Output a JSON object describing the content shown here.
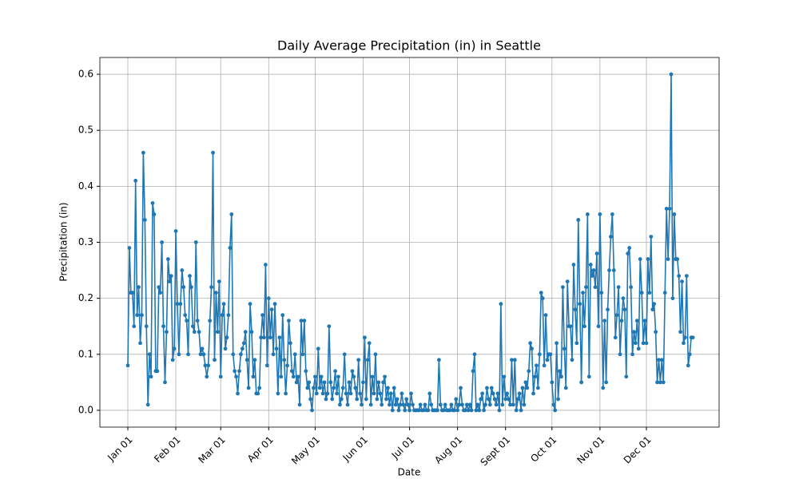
{
  "chart_data": {
    "type": "line",
    "title": "Daily Average Precipitation (in) in Seattle",
    "x_label": "Date",
    "y_label": "Precipitation (in)",
    "x": [
      "Jan 01",
      "Jan 02",
      "Jan 03",
      "Jan 04",
      "Jan 05",
      "Jan 06",
      "Jan 07",
      "Jan 08",
      "Jan 09",
      "Jan 10",
      "Jan 11",
      "Jan 12",
      "Jan 13",
      "Jan 14",
      "Jan 15",
      "Jan 16",
      "Jan 17",
      "Jan 18",
      "Jan 19",
      "Jan 20",
      "Jan 21",
      "Jan 22",
      "Jan 23",
      "Jan 24",
      "Jan 25",
      "Jan 26",
      "Jan 27",
      "Jan 28",
      "Jan 29",
      "Jan 30",
      "Jan 31",
      "Feb 01",
      "Feb 02",
      "Feb 03",
      "Feb 04",
      "Feb 05",
      "Feb 06",
      "Feb 07",
      "Feb 08",
      "Feb 09",
      "Feb 10",
      "Feb 11",
      "Feb 12",
      "Feb 13",
      "Feb 14",
      "Feb 15",
      "Feb 16",
      "Feb 17",
      "Feb 18",
      "Feb 19",
      "Feb 20",
      "Feb 21",
      "Feb 22",
      "Feb 23",
      "Feb 24",
      "Feb 25",
      "Feb 26",
      "Feb 27",
      "Feb 28",
      "Feb 29",
      "Mar 01",
      "Mar 02",
      "Mar 03",
      "Mar 04",
      "Mar 05",
      "Mar 06",
      "Mar 07",
      "Mar 08",
      "Mar 09",
      "Mar 10",
      "Mar 11",
      "Mar 12",
      "Mar 13",
      "Mar 14",
      "Mar 15",
      "Mar 16",
      "Mar 17",
      "Mar 18",
      "Mar 19",
      "Mar 20",
      "Mar 21",
      "Mar 22",
      "Mar 23",
      "Mar 24",
      "Mar 25",
      "Mar 26",
      "Mar 27",
      "Mar 28",
      "Mar 29",
      "Mar 30",
      "Mar 31",
      "Apr 01",
      "Apr 02",
      "Apr 03",
      "Apr 04",
      "Apr 05",
      "Apr 06",
      "Apr 07",
      "Apr 08",
      "Apr 09",
      "Apr 10",
      "Apr 11",
      "Apr 12",
      "Apr 13",
      "Apr 14",
      "Apr 15",
      "Apr 16",
      "Apr 17",
      "Apr 18",
      "Apr 19",
      "Apr 20",
      "Apr 21",
      "Apr 22",
      "Apr 23",
      "Apr 24",
      "Apr 25",
      "Apr 26",
      "Apr 27",
      "Apr 28",
      "Apr 29",
      "Apr 30",
      "May 01",
      "May 02",
      "May 03",
      "May 04",
      "May 05",
      "May 06",
      "May 07",
      "May 08",
      "May 09",
      "May 10",
      "May 11",
      "May 12",
      "May 13",
      "May 14",
      "May 15",
      "May 16",
      "May 17",
      "May 18",
      "May 19",
      "May 20",
      "May 21",
      "May 22",
      "May 23",
      "May 24",
      "May 25",
      "May 26",
      "May 27",
      "May 28",
      "May 29",
      "May 30",
      "May 31",
      "Jun 01",
      "Jun 02",
      "Jun 03",
      "Jun 04",
      "Jun 05",
      "Jun 06",
      "Jun 07",
      "Jun 08",
      "Jun 09",
      "Jun 10",
      "Jun 11",
      "Jun 12",
      "Jun 13",
      "Jun 14",
      "Jun 15",
      "Jun 16",
      "Jun 17",
      "Jun 18",
      "Jun 19",
      "Jun 20",
      "Jun 21",
      "Jun 22",
      "Jun 23",
      "Jun 24",
      "Jun 25",
      "Jun 26",
      "Jun 27",
      "Jun 28",
      "Jun 29",
      "Jun 30",
      "Jul 01",
      "Jul 02",
      "Jul 03",
      "Jul 04",
      "Jul 05",
      "Jul 06",
      "Jul 07",
      "Jul 08",
      "Jul 09",
      "Jul 10",
      "Jul 11",
      "Jul 12",
      "Jul 13",
      "Jul 14",
      "Jul 15",
      "Jul 16",
      "Jul 17",
      "Jul 18",
      "Jul 19",
      "Jul 20",
      "Jul 21",
      "Jul 22",
      "Jul 23",
      "Jul 24",
      "Jul 25",
      "Jul 26",
      "Jul 27",
      "Jul 28",
      "Jul 29",
      "Jul 30",
      "Jul 31",
      "Aug 01",
      "Aug 02",
      "Aug 03",
      "Aug 04",
      "Aug 05",
      "Aug 06",
      "Aug 07",
      "Aug 08",
      "Aug 09",
      "Aug 10",
      "Aug 11",
      "Aug 12",
      "Aug 13",
      "Aug 14",
      "Aug 15",
      "Aug 16",
      "Aug 17",
      "Aug 18",
      "Aug 19",
      "Aug 20",
      "Aug 21",
      "Aug 22",
      "Aug 23",
      "Aug 24",
      "Aug 25",
      "Aug 26",
      "Aug 27",
      "Aug 28",
      "Aug 29",
      "Aug 30",
      "Aug 31",
      "Sept 01",
      "Sept 02",
      "Sept 03",
      "Sept 04",
      "Sept 05",
      "Sept 06",
      "Sept 07",
      "Sept 08",
      "Sept 09",
      "Sept 10",
      "Sept 11",
      "Sept 12",
      "Sept 13",
      "Sept 14",
      "Sept 15",
      "Sept 16",
      "Sept 17",
      "Sept 18",
      "Sept 19",
      "Sept 20",
      "Sept 21",
      "Sept 22",
      "Sept 23",
      "Sept 24",
      "Sept 25",
      "Sept 26",
      "Sept 27",
      "Sept 28",
      "Sept 29",
      "Sept 30",
      "Oct 01",
      "Oct 02",
      "Oct 03",
      "Oct 04",
      "Oct 05",
      "Oct 06",
      "Oct 07",
      "Oct 08",
      "Oct 09",
      "Oct 10",
      "Oct 11",
      "Oct 12",
      "Oct 13",
      "Oct 14",
      "Oct 15",
      "Oct 16",
      "Oct 17",
      "Oct 18",
      "Oct 19",
      "Oct 20",
      "Oct 21",
      "Oct 22",
      "Oct 23",
      "Oct 24",
      "Oct 25",
      "Oct 26",
      "Oct 27",
      "Oct 28",
      "Oct 29",
      "Oct 30",
      "Oct 31",
      "Nov 01",
      "Nov 02",
      "Nov 03",
      "Nov 04",
      "Nov 05",
      "Nov 06",
      "Nov 07",
      "Nov 08",
      "Nov 09",
      "Nov 10",
      "Nov 11",
      "Nov 12",
      "Nov 13",
      "Nov 14",
      "Nov 15",
      "Nov 16",
      "Nov 17",
      "Nov 18",
      "Nov 19",
      "Nov 20",
      "Nov 21",
      "Nov 22",
      "Nov 23",
      "Nov 24",
      "Nov 25",
      "Nov 26",
      "Nov 27",
      "Nov 28",
      "Nov 29",
      "Nov 30",
      "Dec 01",
      "Dec 02",
      "Dec 03",
      "Dec 04",
      "Dec 05",
      "Dec 06",
      "Dec 07",
      "Dec 08",
      "Dec 09",
      "Dec 10",
      "Dec 11",
      "Dec 12",
      "Dec 13",
      "Dec 14",
      "Dec 15",
      "Dec 16",
      "Dec 17",
      "Dec 18",
      "Dec 19",
      "Dec 20",
      "Dec 21",
      "Dec 22",
      "Dec 23",
      "Dec 24",
      "Dec 25",
      "Dec 26",
      "Dec 27",
      "Dec 28",
      "Dec 29",
      "Dec 30",
      "Dec 31"
    ],
    "series": [
      {
        "color": "#1f77b4",
        "values": [
          0.08,
          0.29,
          0.21,
          0.21,
          0.15,
          0.41,
          0.17,
          0.22,
          0.12,
          0.17,
          0.46,
          0.34,
          0.15,
          0.01,
          0.1,
          0.06,
          0.37,
          0.35,
          0.07,
          0.07,
          0.22,
          0.21,
          0.3,
          0.15,
          0.05,
          0.14,
          0.27,
          0.23,
          0.24,
          0.09,
          0.11,
          0.32,
          0.19,
          0.1,
          0.19,
          0.25,
          0.22,
          0.17,
          0.16,
          0.1,
          0.24,
          0.22,
          0.15,
          0.14,
          0.3,
          0.16,
          0.14,
          0.1,
          0.11,
          0.1,
          0.08,
          0.06,
          0.08,
          0.16,
          0.22,
          0.46,
          0.09,
          0.21,
          0.14,
          0.23,
          0.06,
          0.17,
          0.19,
          0.11,
          0.13,
          0.17,
          0.29,
          0.35,
          0.1,
          0.07,
          0.06,
          0.03,
          0.07,
          0.1,
          0.11,
          0.12,
          0.14,
          0.09,
          0.04,
          0.19,
          0.14,
          0.06,
          0.09,
          0.03,
          0.03,
          0.04,
          0.13,
          0.17,
          0.13,
          0.26,
          0.08,
          0.2,
          0.13,
          0.18,
          0.1,
          0.19,
          0.11,
          0.03,
          0.13,
          0.06,
          0.17,
          0.09,
          0.03,
          0.08,
          0.16,
          0.12,
          0.07,
          0.06,
          0.1,
          0.05,
          0.06,
          0.01,
          0.16,
          0.1,
          0.16,
          0.07,
          0.04,
          0.05,
          0.02,
          0.0,
          0.04,
          0.06,
          0.03,
          0.11,
          0.04,
          0.06,
          0.03,
          0.05,
          0.02,
          0.03,
          0.15,
          0.05,
          0.02,
          0.04,
          0.07,
          0.03,
          0.06,
          0.01,
          0.02,
          0.04,
          0.1,
          0.03,
          0.01,
          0.05,
          0.03,
          0.07,
          0.06,
          0.04,
          0.02,
          0.09,
          0.03,
          0.01,
          0.05,
          0.13,
          0.02,
          0.09,
          0.12,
          0.01,
          0.06,
          0.03,
          0.1,
          0.02,
          0.05,
          0.03,
          0.01,
          0.05,
          0.06,
          0.02,
          0.04,
          0.01,
          0.03,
          0.0,
          0.04,
          0.01,
          0.02,
          0.0,
          0.01,
          0.03,
          0.01,
          0.0,
          0.02,
          0.01,
          0.0,
          0.03,
          0.01,
          0.0,
          0.0,
          0.0,
          0.0,
          0.01,
          0.0,
          0.0,
          0.01,
          0.0,
          0.0,
          0.03,
          0.01,
          0.0,
          0.0,
          0.0,
          0.0,
          0.09,
          0.01,
          0.0,
          0.0,
          0.01,
          0.0,
          0.0,
          0.0,
          0.01,
          0.0,
          0.0,
          0.02,
          0.0,
          0.01,
          0.04,
          0.01,
          0.0,
          0.0,
          0.01,
          0.0,
          0.01,
          0.0,
          0.07,
          0.1,
          0.0,
          0.01,
          0.0,
          0.02,
          0.03,
          0.0,
          0.01,
          0.04,
          0.02,
          0.01,
          0.04,
          0.03,
          0.02,
          0.01,
          0.03,
          0.0,
          0.19,
          0.01,
          0.06,
          0.02,
          0.03,
          0.02,
          0.01,
          0.09,
          0.01,
          0.09,
          0.0,
          0.02,
          0.03,
          0.0,
          0.04,
          0.01,
          0.05,
          0.04,
          0.07,
          0.12,
          0.11,
          0.03,
          0.06,
          0.08,
          0.04,
          0.1,
          0.21,
          0.2,
          0.08,
          0.17,
          0.09,
          0.1,
          0.1,
          0.05,
          0.01,
          0.0,
          0.12,
          0.02,
          0.07,
          0.06,
          0.22,
          0.11,
          0.04,
          0.23,
          0.15,
          0.15,
          0.09,
          0.26,
          0.18,
          0.12,
          0.34,
          0.19,
          0.05,
          0.21,
          0.15,
          0.22,
          0.35,
          0.06,
          0.26,
          0.24,
          0.25,
          0.22,
          0.28,
          0.15,
          0.35,
          0.21,
          0.04,
          0.16,
          0.05,
          0.18,
          0.25,
          0.31,
          0.35,
          0.25,
          0.13,
          0.17,
          0.22,
          0.1,
          0.16,
          0.2,
          0.18,
          0.06,
          0.28,
          0.29,
          0.22,
          0.1,
          0.14,
          0.12,
          0.16,
          0.11,
          0.27,
          0.21,
          0.12,
          0.16,
          0.12,
          0.27,
          0.21,
          0.31,
          0.18,
          0.19,
          0.14,
          0.05,
          0.09,
          0.05,
          0.09,
          0.05,
          0.21,
          0.36,
          0.27,
          0.36,
          0.6,
          0.2,
          0.35,
          0.27,
          0.27,
          0.24,
          0.14,
          0.23,
          0.12,
          0.13,
          0.24,
          0.08,
          0.1,
          0.13,
          0.13
        ]
      }
    ],
    "xticks": [
      "Jan 01",
      "Feb 01",
      "Mar 01",
      "Apr 01",
      "May 01",
      "Jun 01",
      "Jul 01",
      "Aug 01",
      "Sept 01",
      "Oct 01",
      "Nov 01",
      "Dec 01"
    ],
    "ylim": [
      -0.03,
      0.63
    ],
    "yticks": [
      {
        "value": 0,
        "label": "0.0"
      },
      0.1,
      0.2,
      0.3,
      0.4,
      0.5,
      0.6
    ],
    "grid": true
  }
}
